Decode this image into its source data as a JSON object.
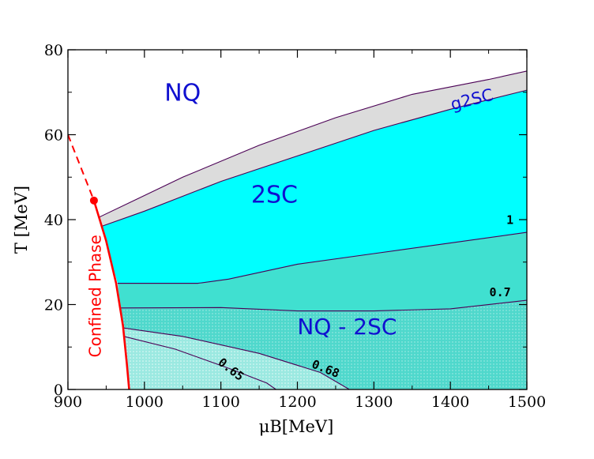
{
  "chart_data": {
    "type": "area",
    "xlabel": "μB[MeV]",
    "ylabel": "T [MeV]",
    "xlim": [
      900,
      1500
    ],
    "ylim": [
      0,
      80
    ],
    "x_ticks": [
      900,
      1000,
      1100,
      1200,
      1300,
      1400,
      1500
    ],
    "y_ticks": [
      0,
      20,
      40,
      60,
      80
    ],
    "grid": false,
    "region_labels": [
      {
        "text": "NQ",
        "at": [
          1050,
          68
        ]
      },
      {
        "text": "2SC",
        "at": [
          1170,
          44
        ]
      },
      {
        "text": "NQ - 2SC",
        "at": [
          1265,
          13
        ]
      },
      {
        "text": "g2SC",
        "at": [
          1430,
          67
        ]
      },
      {
        "text": "Confined Phase",
        "at": [
          943,
          22
        ]
      }
    ],
    "contour_labels": [
      {
        "text": "1",
        "at": [
          1478,
          39
        ]
      },
      {
        "text": "0.7",
        "at": [
          1465,
          22
        ]
      },
      {
        "text": "0.65",
        "at": [
          1110,
          4
        ]
      },
      {
        "text": "0.68",
        "at": [
          1235,
          4
        ]
      }
    ],
    "series": [
      {
        "name": "g2SC",
        "x": [
          940,
          1050,
          1150,
          1250,
          1350,
          1450,
          1500
        ],
        "y": [
          40.5,
          50,
          57.5,
          64,
          69.5,
          73,
          75
        ]
      },
      {
        "name": "2SC",
        "x": [
          945,
          1000,
          1100,
          1200,
          1300,
          1400,
          1500
        ],
        "y": [
          38.5,
          42,
          49,
          55,
          61,
          66,
          70.5
        ]
      },
      {
        "name": "1",
        "x": [
          965,
          1070,
          1110,
          1200,
          1300,
          1400,
          1500
        ],
        "y": [
          25,
          25,
          26,
          29.5,
          32,
          34.5,
          37
        ]
      },
      {
        "name": "0.7",
        "x": [
          968,
          1100,
          1200,
          1300,
          1400,
          1500
        ],
        "y": [
          19.2,
          19.3,
          18.5,
          18.5,
          19,
          21
        ]
      },
      {
        "name": "0.68",
        "x": [
          972,
          1050,
          1150,
          1230,
          1268
        ],
        "y": [
          14.5,
          12.5,
          8.5,
          4,
          0
        ]
      },
      {
        "name": "0.65",
        "x": [
          973,
          1040,
          1110,
          1160,
          1172
        ],
        "y": [
          12.5,
          9.5,
          5,
          1.5,
          0
        ]
      }
    ],
    "fills": {
      "g2SC": "#dcdcdc",
      "2SC": "#00ffff",
      "band_1": "#40e0d0",
      "band_07": "#40d8c8",
      "dotted_low": "#7fe3d9",
      "dotted_lowest": "#b4efea",
      "boundary": "#4b0055",
      "text": "#1010d0",
      "confined": "#ff0000"
    },
    "confinement_line": {
      "dashed": {
        "x": [
          900,
          934
        ],
        "y": [
          60,
          44.5
        ]
      },
      "solid": {
        "x": [
          934,
          950,
          963,
          972,
          977,
          980
        ],
        "y": [
          44.5,
          35,
          25,
          15,
          6,
          0
        ]
      },
      "critical_point": [
        934,
        44.5
      ]
    }
  }
}
